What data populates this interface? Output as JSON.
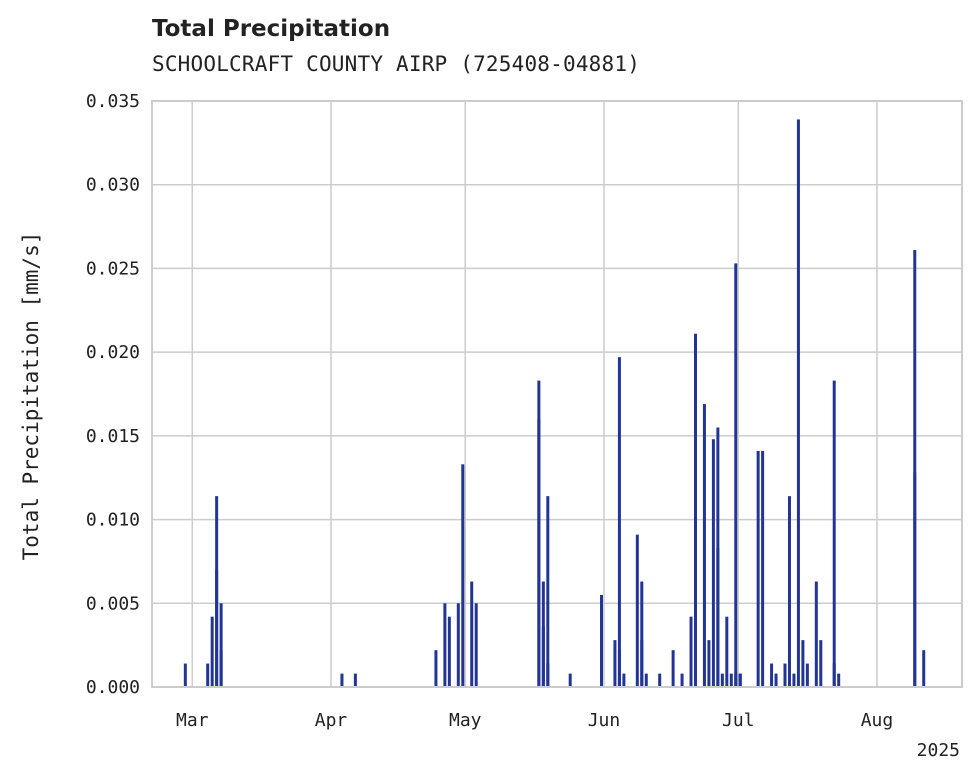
{
  "chart_data": {
    "type": "bar",
    "title": "Total Precipitation",
    "subtitle": "SCHOOLCRAFT COUNTY AIRP (725408-04881)",
    "ylabel": "Total Precipitation [mm/s]",
    "xlabel": "",
    "x_offset_label": "2025",
    "ylim": [
      0,
      0.035
    ],
    "yticks": [
      0.0,
      0.005,
      0.01,
      0.015,
      0.02,
      0.025,
      0.03,
      0.035
    ],
    "ytick_labels": [
      "0.000",
      "0.005",
      "0.010",
      "0.015",
      "0.020",
      "0.025",
      "0.030",
      "0.035"
    ],
    "xlim": [
      "2025-02-20",
      "2025-08-20"
    ],
    "xticks": [
      "2025-03-01",
      "2025-04-01",
      "2025-05-01",
      "2025-06-01",
      "2025-07-01",
      "2025-08-01"
    ],
    "xtick_labels": [
      "Mar",
      "Apr",
      "May",
      "Jun",
      "Jul",
      "Aug"
    ],
    "grid": true,
    "bar_color": "#233594",
    "series": [
      {
        "x": [
          "2025-02-27",
          "2025-03-04",
          "2025-03-05",
          "2025-03-06",
          "2025-03-06",
          "2025-03-07",
          "2025-03-07",
          "2025-04-03",
          "2025-04-06",
          "2025-04-24",
          "2025-04-26",
          "2025-04-27",
          "2025-04-29",
          "2025-04-30",
          "2025-05-02",
          "2025-05-03",
          "2025-05-17",
          "2025-05-17",
          "2025-05-18",
          "2025-05-18",
          "2025-05-19",
          "2025-05-19",
          "2025-05-24",
          "2025-05-31",
          "2025-06-03",
          "2025-06-04",
          "2025-06-04",
          "2025-06-05",
          "2025-06-08",
          "2025-06-09",
          "2025-06-09",
          "2025-06-10",
          "2025-06-13",
          "2025-06-16",
          "2025-06-18",
          "2025-06-20",
          "2025-06-21",
          "2025-06-23",
          "2025-06-24",
          "2025-06-25",
          "2025-06-26",
          "2025-06-26",
          "2025-06-27",
          "2025-06-28",
          "2025-06-29",
          "2025-06-30",
          "2025-06-30",
          "2025-07-01",
          "2025-07-01",
          "2025-07-05",
          "2025-07-06",
          "2025-07-08",
          "2025-07-09",
          "2025-07-11",
          "2025-07-12",
          "2025-07-13",
          "2025-07-14",
          "2025-07-15",
          "2025-07-16",
          "2025-07-18",
          "2025-07-19",
          "2025-07-22",
          "2025-07-22",
          "2025-07-23",
          "2025-08-09",
          "2025-08-09",
          "2025-08-11"
        ],
        "values": [
          0.0014,
          0.0014,
          0.0042,
          0.0114,
          0.007,
          0.005,
          0.0022,
          0.0008,
          0.0008,
          0.0022,
          0.005,
          0.0042,
          0.005,
          0.0133,
          0.0063,
          0.005,
          0.0183,
          0.016,
          0.0036,
          0.0063,
          0.0114,
          0.0014,
          0.0008,
          0.0055,
          0.0028,
          0.0197,
          0.0022,
          0.0008,
          0.0091,
          0.0063,
          0.0028,
          0.0008,
          0.0008,
          0.0022,
          0.0008,
          0.0042,
          0.0211,
          0.0169,
          0.0028,
          0.0148,
          0.0155,
          0.0083,
          0.0008,
          0.0042,
          0.0008,
          0.0253,
          0.0008,
          0.0008,
          0.0008,
          0.0141,
          0.0141,
          0.0014,
          0.0008,
          0.0014,
          0.0114,
          0.0008,
          0.0339,
          0.0028,
          0.0014,
          0.0063,
          0.0028,
          0.0183,
          0.0014,
          0.0008,
          0.0261,
          0.0128,
          0.0022
        ]
      }
    ]
  }
}
